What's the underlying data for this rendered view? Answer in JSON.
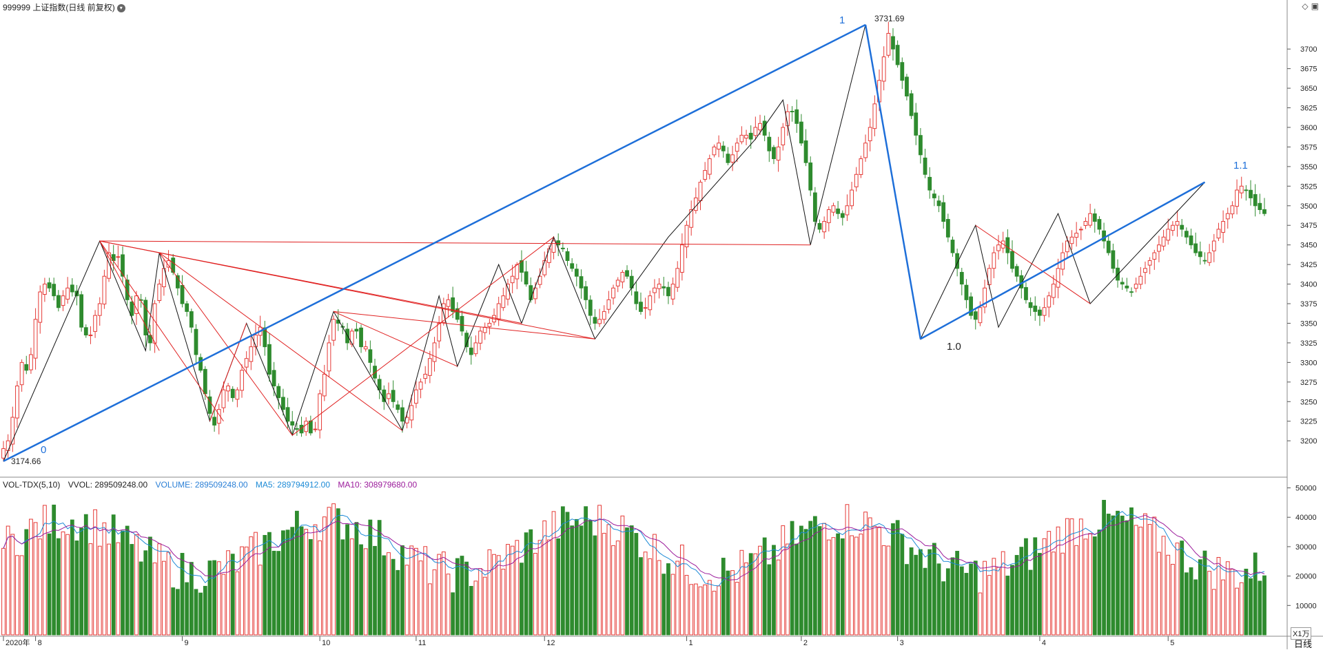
{
  "header": {
    "title": "999999 上证指数(日线 前复权)"
  },
  "top_icons": [
    "diamond-icon",
    "panel-toggle-icon"
  ],
  "volume_header": {
    "indicator": "VOL-TDX(5,10)",
    "vvol": "VVOL: 289509248.00",
    "volume": "VOLUME: 289509248.00",
    "ma5": "MA5: 289794912.00",
    "ma10": "MA10: 308979680.00"
  },
  "annotations": {
    "low_price": "3174.66",
    "high_price": "3731.69",
    "wave_0": "0",
    "wave_1": "1",
    "wave_10": "1.0",
    "wave_11": "1.1"
  },
  "axis": {
    "unit": "X1万",
    "period": "日线"
  },
  "colors": {
    "up": "#e53935",
    "down": "#2e8b2e",
    "blue_line": "#1e6fd9",
    "black_line": "#111111",
    "red_line": "#e02020",
    "vol_label": "#2a7fd6",
    "ma5": "#1c8ad6",
    "ma10": "#9b1b9b"
  },
  "chart_data": [
    {
      "type": "candlestick",
      "title": "999999 上证指数(日线 前复权)",
      "ylim": [
        3165,
        3745
      ],
      "yticks": [
        3200,
        3225,
        3250,
        3275,
        3300,
        3325,
        3350,
        3375,
        3400,
        3425,
        3450,
        3475,
        3500,
        3525,
        3550,
        3575,
        3600,
        3625,
        3650,
        3675,
        3700
      ],
      "x_tick_labels": [
        "2020年",
        "8",
        "9",
        "10",
        "11",
        "12",
        "1",
        "2",
        "3",
        "4",
        "5"
      ],
      "x_tick_index": [
        0,
        7,
        39,
        69,
        90,
        118,
        149,
        174,
        195,
        226,
        254
      ],
      "closes": [
        3190,
        3200,
        3230,
        3270,
        3300,
        3290,
        3310,
        3355,
        3390,
        3400,
        3395,
        3385,
        3370,
        3385,
        3395,
        3390,
        3385,
        3345,
        3335,
        3335,
        3360,
        3375,
        3410,
        3440,
        3430,
        3435,
        3410,
        3380,
        3360,
        3385,
        3380,
        3335,
        3325,
        3375,
        3400,
        3420,
        3430,
        3415,
        3395,
        3375,
        3365,
        3345,
        3310,
        3290,
        3260,
        3235,
        3220,
        3240,
        3265,
        3270,
        3255,
        3265,
        3290,
        3305,
        3320,
        3335,
        3345,
        3320,
        3285,
        3270,
        3255,
        3240,
        3225,
        3220,
        3215,
        3210,
        3225,
        3210,
        3215,
        3260,
        3285,
        3325,
        3355,
        3350,
        3345,
        3325,
        3340,
        3340,
        3320,
        3320,
        3300,
        3280,
        3265,
        3250,
        3260,
        3250,
        3240,
        3225,
        3230,
        3245,
        3265,
        3275,
        3285,
        3305,
        3325,
        3350,
        3375,
        3380,
        3365,
        3355,
        3340,
        3320,
        3310,
        3325,
        3340,
        3345,
        3350,
        3360,
        3375,
        3385,
        3400,
        3410,
        3425,
        3415,
        3400,
        3380,
        3395,
        3410,
        3430,
        3445,
        3455,
        3450,
        3445,
        3430,
        3420,
        3410,
        3395,
        3380,
        3360,
        3350,
        3355,
        3365,
        3380,
        3395,
        3405,
        3415,
        3410,
        3395,
        3375,
        3365,
        3370,
        3385,
        3395,
        3400,
        3395,
        3385,
        3400,
        3420,
        3450,
        3475,
        3495,
        3510,
        3530,
        3545,
        3560,
        3575,
        3580,
        3570,
        3555,
        3565,
        3580,
        3590,
        3590,
        3585,
        3600,
        3605,
        3590,
        3570,
        3560,
        3575,
        3600,
        3620,
        3620,
        3605,
        3580,
        3555,
        3520,
        3480,
        3470,
        3480,
        3495,
        3500,
        3490,
        3485,
        3500,
        3520,
        3540,
        3560,
        3580,
        3600,
        3630,
        3660,
        3690,
        3720,
        3700,
        3680,
        3660,
        3640,
        3615,
        3590,
        3565,
        3540,
        3520,
        3510,
        3500,
        3480,
        3460,
        3440,
        3420,
        3400,
        3380,
        3360,
        3355,
        3370,
        3395,
        3420,
        3440,
        3450,
        3455,
        3440,
        3420,
        3410,
        3395,
        3380,
        3370,
        3365,
        3360,
        3370,
        3385,
        3400,
        3420,
        3440,
        3455,
        3460,
        3465,
        3470,
        3480,
        3490,
        3480,
        3470,
        3455,
        3440,
        3420,
        3405,
        3400,
        3395,
        3390,
        3400,
        3410,
        3420,
        3430,
        3440,
        3450,
        3460,
        3470,
        3475,
        3480,
        3470,
        3460,
        3450,
        3440,
        3435,
        3430,
        3440,
        3455,
        3470,
        3480,
        3490,
        3500,
        3520,
        3525,
        3520,
        3510,
        3500,
        3495,
        3490
      ],
      "annotations": [
        "3174.66",
        "3731.69",
        "0",
        "1",
        "1.0",
        "1.1"
      ]
    },
    {
      "type": "bar",
      "title": "VOL-TDX(5,10)",
      "ylim": [
        0,
        52000
      ],
      "yticks": [
        10000,
        20000,
        30000,
        40000,
        50000
      ],
      "unit": "X1万",
      "series": [
        {
          "name": "VOLUME",
          "last": 289509248.0
        },
        {
          "name": "MA5",
          "last": 289794912.0
        },
        {
          "name": "MA10",
          "last": 308979680.0
        }
      ]
    }
  ]
}
